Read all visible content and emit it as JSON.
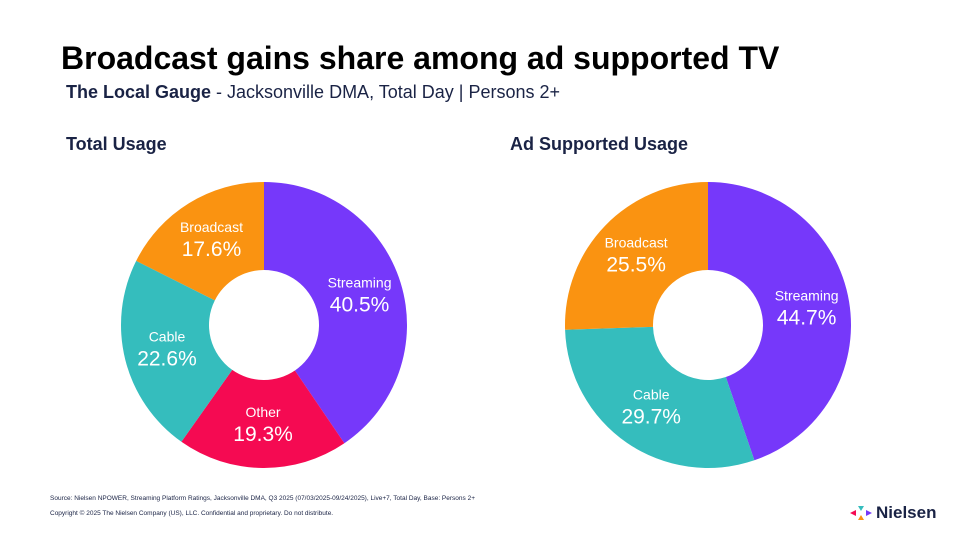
{
  "header": {
    "title": "Broadcast gains share among ad supported TV",
    "subtitle_bold": "The Local Gauge",
    "subtitle_rest": " - Jacksonville DMA, Total Day | Persons 2+"
  },
  "chart_data": [
    {
      "type": "pie",
      "title": "Total Usage",
      "donut": true,
      "unit": "%",
      "slices": [
        {
          "label": "Streaming",
          "value": 40.5,
          "color": "#7638FA"
        },
        {
          "label": "Other",
          "value": 19.3,
          "color": "#F50A52"
        },
        {
          "label": "Cable",
          "value": 22.6,
          "color": "#35BDBD"
        },
        {
          "label": "Broadcast",
          "value": 17.6,
          "color": "#FA9311"
        }
      ]
    },
    {
      "type": "pie",
      "title": "Ad Supported Usage",
      "donut": true,
      "unit": "%",
      "slices": [
        {
          "label": "Streaming",
          "value": 44.7,
          "color": "#7638FA"
        },
        {
          "label": "Cable",
          "value": 29.7,
          "color": "#35BDBD"
        },
        {
          "label": "Broadcast",
          "value": 25.5,
          "color": "#FA9311"
        }
      ]
    }
  ],
  "footer": {
    "source": "Source: Nielsen NPOWER, Streaming Platform Ratings, Jacksonville DMA, Q3 2025 (07/03/2025-09/24/2025), Live+7, Total Day, Base: Persons 2+",
    "copyright": "Copyright © 2025 The Nielsen Company (US), LLC. Confidential and proprietary. Do not distribute.",
    "logo": "Nielsen"
  }
}
